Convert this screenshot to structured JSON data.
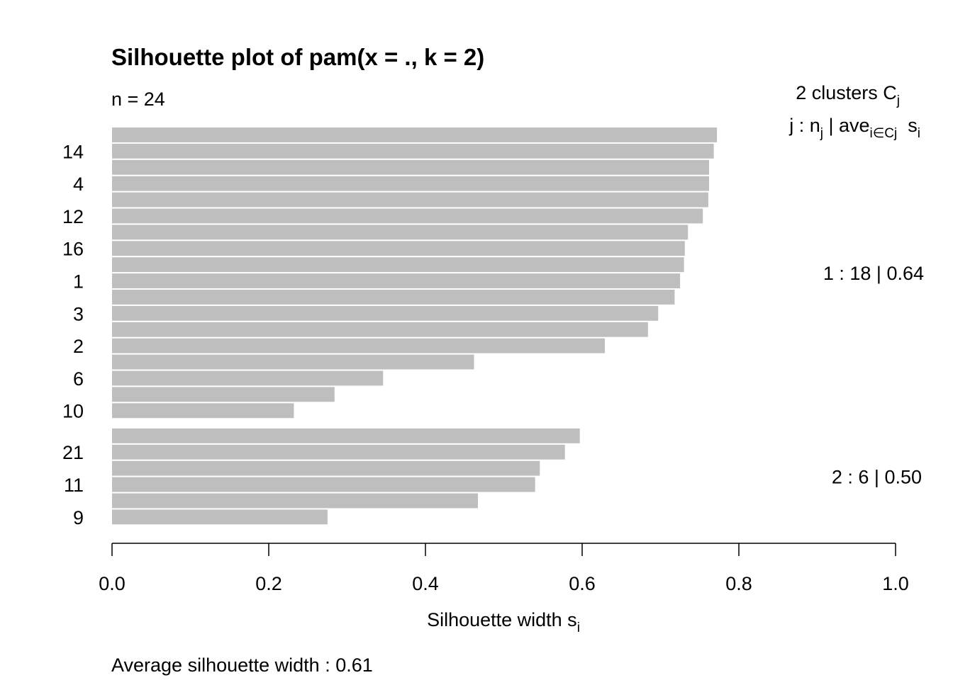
{
  "chart_data": {
    "type": "bar",
    "orientation": "horizontal",
    "title": "Silhouette plot of pam(x = ., k = 2)",
    "subtitle": "n = 24",
    "header": {
      "line1_prefix": "2  clusters  C",
      "line1_sub": "j",
      "line2_j": "j :  n",
      "line2_j_sub": "j",
      "line2_sep": " | ave",
      "line2_ave_sub": "i∈Cj",
      "line2_s": "  s",
      "line2_s_sub": "i"
    },
    "xlabel": "Silhouette width s",
    "xlabel_sub": "i",
    "xlim": [
      0,
      1
    ],
    "xticks": [
      "0.0",
      "0.2",
      "0.4",
      "0.6",
      "0.8",
      "1.0"
    ],
    "xtick_values": [
      0,
      0.2,
      0.4,
      0.6,
      0.8,
      1.0
    ],
    "bar_color": "#bebebe",
    "clusters": [
      {
        "summary": "1 :   18  |  0.64",
        "values": [
          0.772,
          0.768,
          0.762,
          0.762,
          0.761,
          0.754,
          0.735,
          0.731,
          0.73,
          0.725,
          0.718,
          0.697,
          0.684,
          0.629,
          0.462,
          0.346,
          0.284,
          0.232
        ],
        "labels": [
          "",
          "14",
          "",
          "4",
          "",
          "12",
          "",
          "16",
          "",
          "1",
          "",
          "3",
          "",
          "2",
          "",
          "6",
          "",
          "10"
        ]
      },
      {
        "summary": "2 :   6  |  0.50",
        "values": [
          0.597,
          0.578,
          0.546,
          0.54,
          0.467,
          0.275
        ],
        "labels": [
          "",
          "21",
          "",
          "11",
          "",
          "9"
        ]
      }
    ],
    "footer": "Average silhouette width :  0.61"
  }
}
